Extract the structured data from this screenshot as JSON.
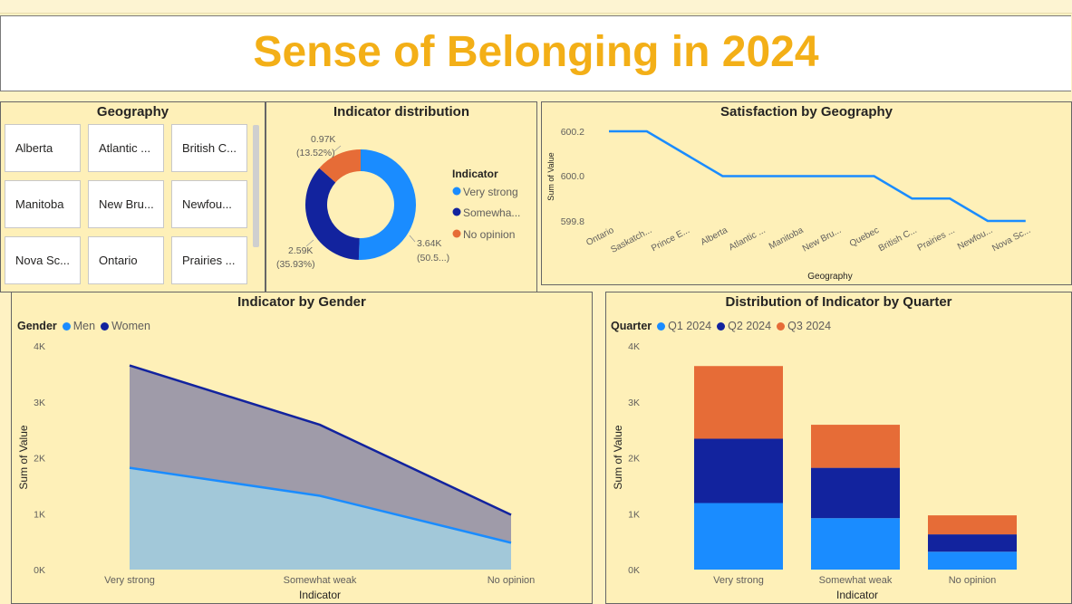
{
  "page": {
    "title": "Sense of Belonging in 2024"
  },
  "colors": {
    "title": "#f3af17",
    "very_strong": "#1a8cff",
    "somewhat": "#12239e",
    "no_opinion": "#e66c37",
    "men_fill": "#a2c8d9",
    "women_fill": "#9f9ba9",
    "panel_bg": "#fef0b8"
  },
  "geography_slicer": {
    "title": "Geography",
    "items": [
      "Alberta",
      "Atlantic ...",
      "British C...",
      "Manitoba",
      "New Bru...",
      "Newfou...",
      "Nova Sc...",
      "Ontario",
      "Prairies ..."
    ]
  },
  "donut": {
    "title": "Indicator distribution",
    "legend_title": "Indicator",
    "legend": [
      "Very strong",
      "Somewha...",
      "No opinion"
    ],
    "labels": {
      "very_strong": [
        "3.64K",
        "(50.5...)"
      ],
      "somewhat": [
        "2.59K",
        "(35.93%)"
      ],
      "no_opinion": [
        "0.97K",
        "(13.52%)"
      ]
    }
  },
  "satisfaction": {
    "title": "Satisfaction by Geography",
    "ylabel": "Sum of Value",
    "xlabel": "Geography",
    "yticks": [
      "600.2",
      "600.0",
      "599.8"
    ]
  },
  "gender": {
    "title": "Indicator by Gender",
    "legend_title": "Gender",
    "legend": [
      "Men",
      "Women"
    ],
    "ylabel": "Sum of Value",
    "xlabel": "Indicator",
    "yticks": [
      "4K",
      "3K",
      "2K",
      "1K",
      "0K"
    ]
  },
  "quarter": {
    "title": "Distribution of Indicator by Quarter",
    "legend_title": "Quarter",
    "legend": [
      "Q1 2024",
      "Q2 2024",
      "Q3 2024"
    ],
    "ylabel": "Sum of Value",
    "xlabel": "Indicator",
    "yticks": [
      "4K",
      "3K",
      "2K",
      "1K",
      "0K"
    ]
  },
  "chart_data": [
    {
      "type": "pie",
      "title": "Indicator distribution",
      "categories": [
        "Very strong",
        "Somewhat weak",
        "No opinion"
      ],
      "values": [
        3640,
        2590,
        970
      ],
      "percent": [
        50.55,
        35.93,
        13.52
      ]
    },
    {
      "type": "line",
      "title": "Satisfaction by Geography",
      "xlabel": "Geography",
      "ylabel": "Sum of Value",
      "categories": [
        "Ontario",
        "Saskatch...",
        "Prince E...",
        "Alberta",
        "Atlantic ...",
        "Manitoba",
        "New Bru...",
        "Quebec",
        "British C...",
        "Prairies ...",
        "Newfou...",
        "Nova Sc..."
      ],
      "values": [
        600.2,
        600.2,
        600.1,
        600.0,
        600.0,
        600.0,
        600.0,
        600.0,
        599.9,
        599.9,
        599.8,
        599.8
      ],
      "ylim": [
        599.8,
        600.2
      ]
    },
    {
      "type": "area",
      "title": "Indicator by Gender",
      "xlabel": "Indicator",
      "ylabel": "Sum of Value",
      "categories": [
        "Very strong",
        "Somewhat weak",
        "No opinion"
      ],
      "series": [
        {
          "name": "Men",
          "values": [
            1820,
            1320,
            480
          ]
        },
        {
          "name": "Women",
          "values": [
            1830,
            1270,
            500
          ]
        }
      ],
      "stacked": true,
      "ylim": [
        0,
        4000
      ]
    },
    {
      "type": "bar",
      "title": "Distribution of Indicator by Quarter",
      "xlabel": "Indicator",
      "ylabel": "Sum of Value",
      "categories": [
        "Very strong",
        "Somewhat weak",
        "No opinion"
      ],
      "series": [
        {
          "name": "Q1 2024",
          "values": [
            1190,
            920,
            320
          ]
        },
        {
          "name": "Q2 2024",
          "values": [
            1150,
            900,
            310
          ]
        },
        {
          "name": "Q3 2024",
          "values": [
            1300,
            770,
            340
          ]
        }
      ],
      "stacked": true,
      "ylim": [
        0,
        4000
      ]
    }
  ]
}
